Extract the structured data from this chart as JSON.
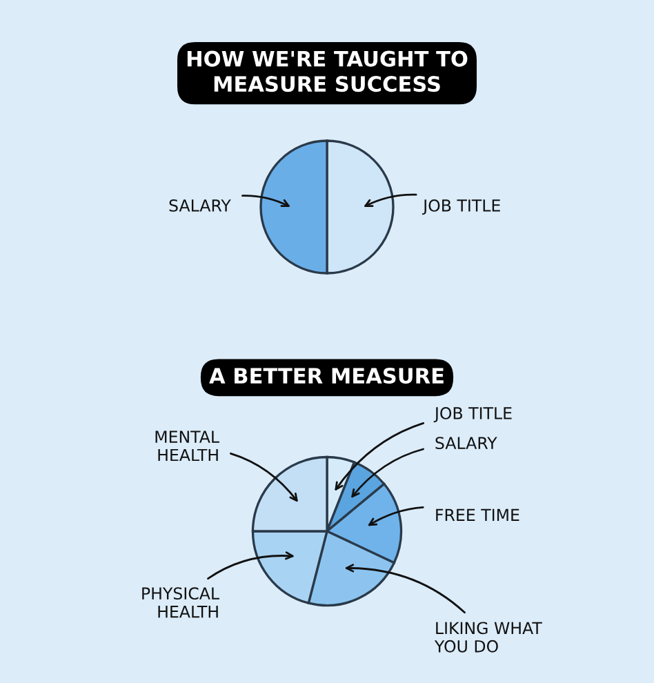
{
  "chart_data": [
    {
      "type": "pie",
      "title": "HOW WE'RE TAUGHT TO\nMEASURE SUCCESS",
      "categories": [
        "JOB TITLE",
        "SALARY"
      ],
      "values": [
        50,
        50
      ],
      "colors": [
        "#cfe6f8",
        "#6aaee8"
      ]
    },
    {
      "type": "pie",
      "title": "A BETTER MEASURE",
      "categories": [
        "JOB TITLE",
        "SALARY",
        "FREE TIME",
        "LIKING WHAT\nYOU DO",
        "PHYSICAL\nHEALTH",
        "MENTAL\nHEALTH"
      ],
      "values": [
        6,
        8,
        18,
        22,
        21,
        25
      ],
      "colors": [
        "#d6ebf9",
        "#5aa4e0",
        "#6fb3ea",
        "#8cc4ef",
        "#a9d3f3",
        "#c3dff5"
      ]
    }
  ]
}
